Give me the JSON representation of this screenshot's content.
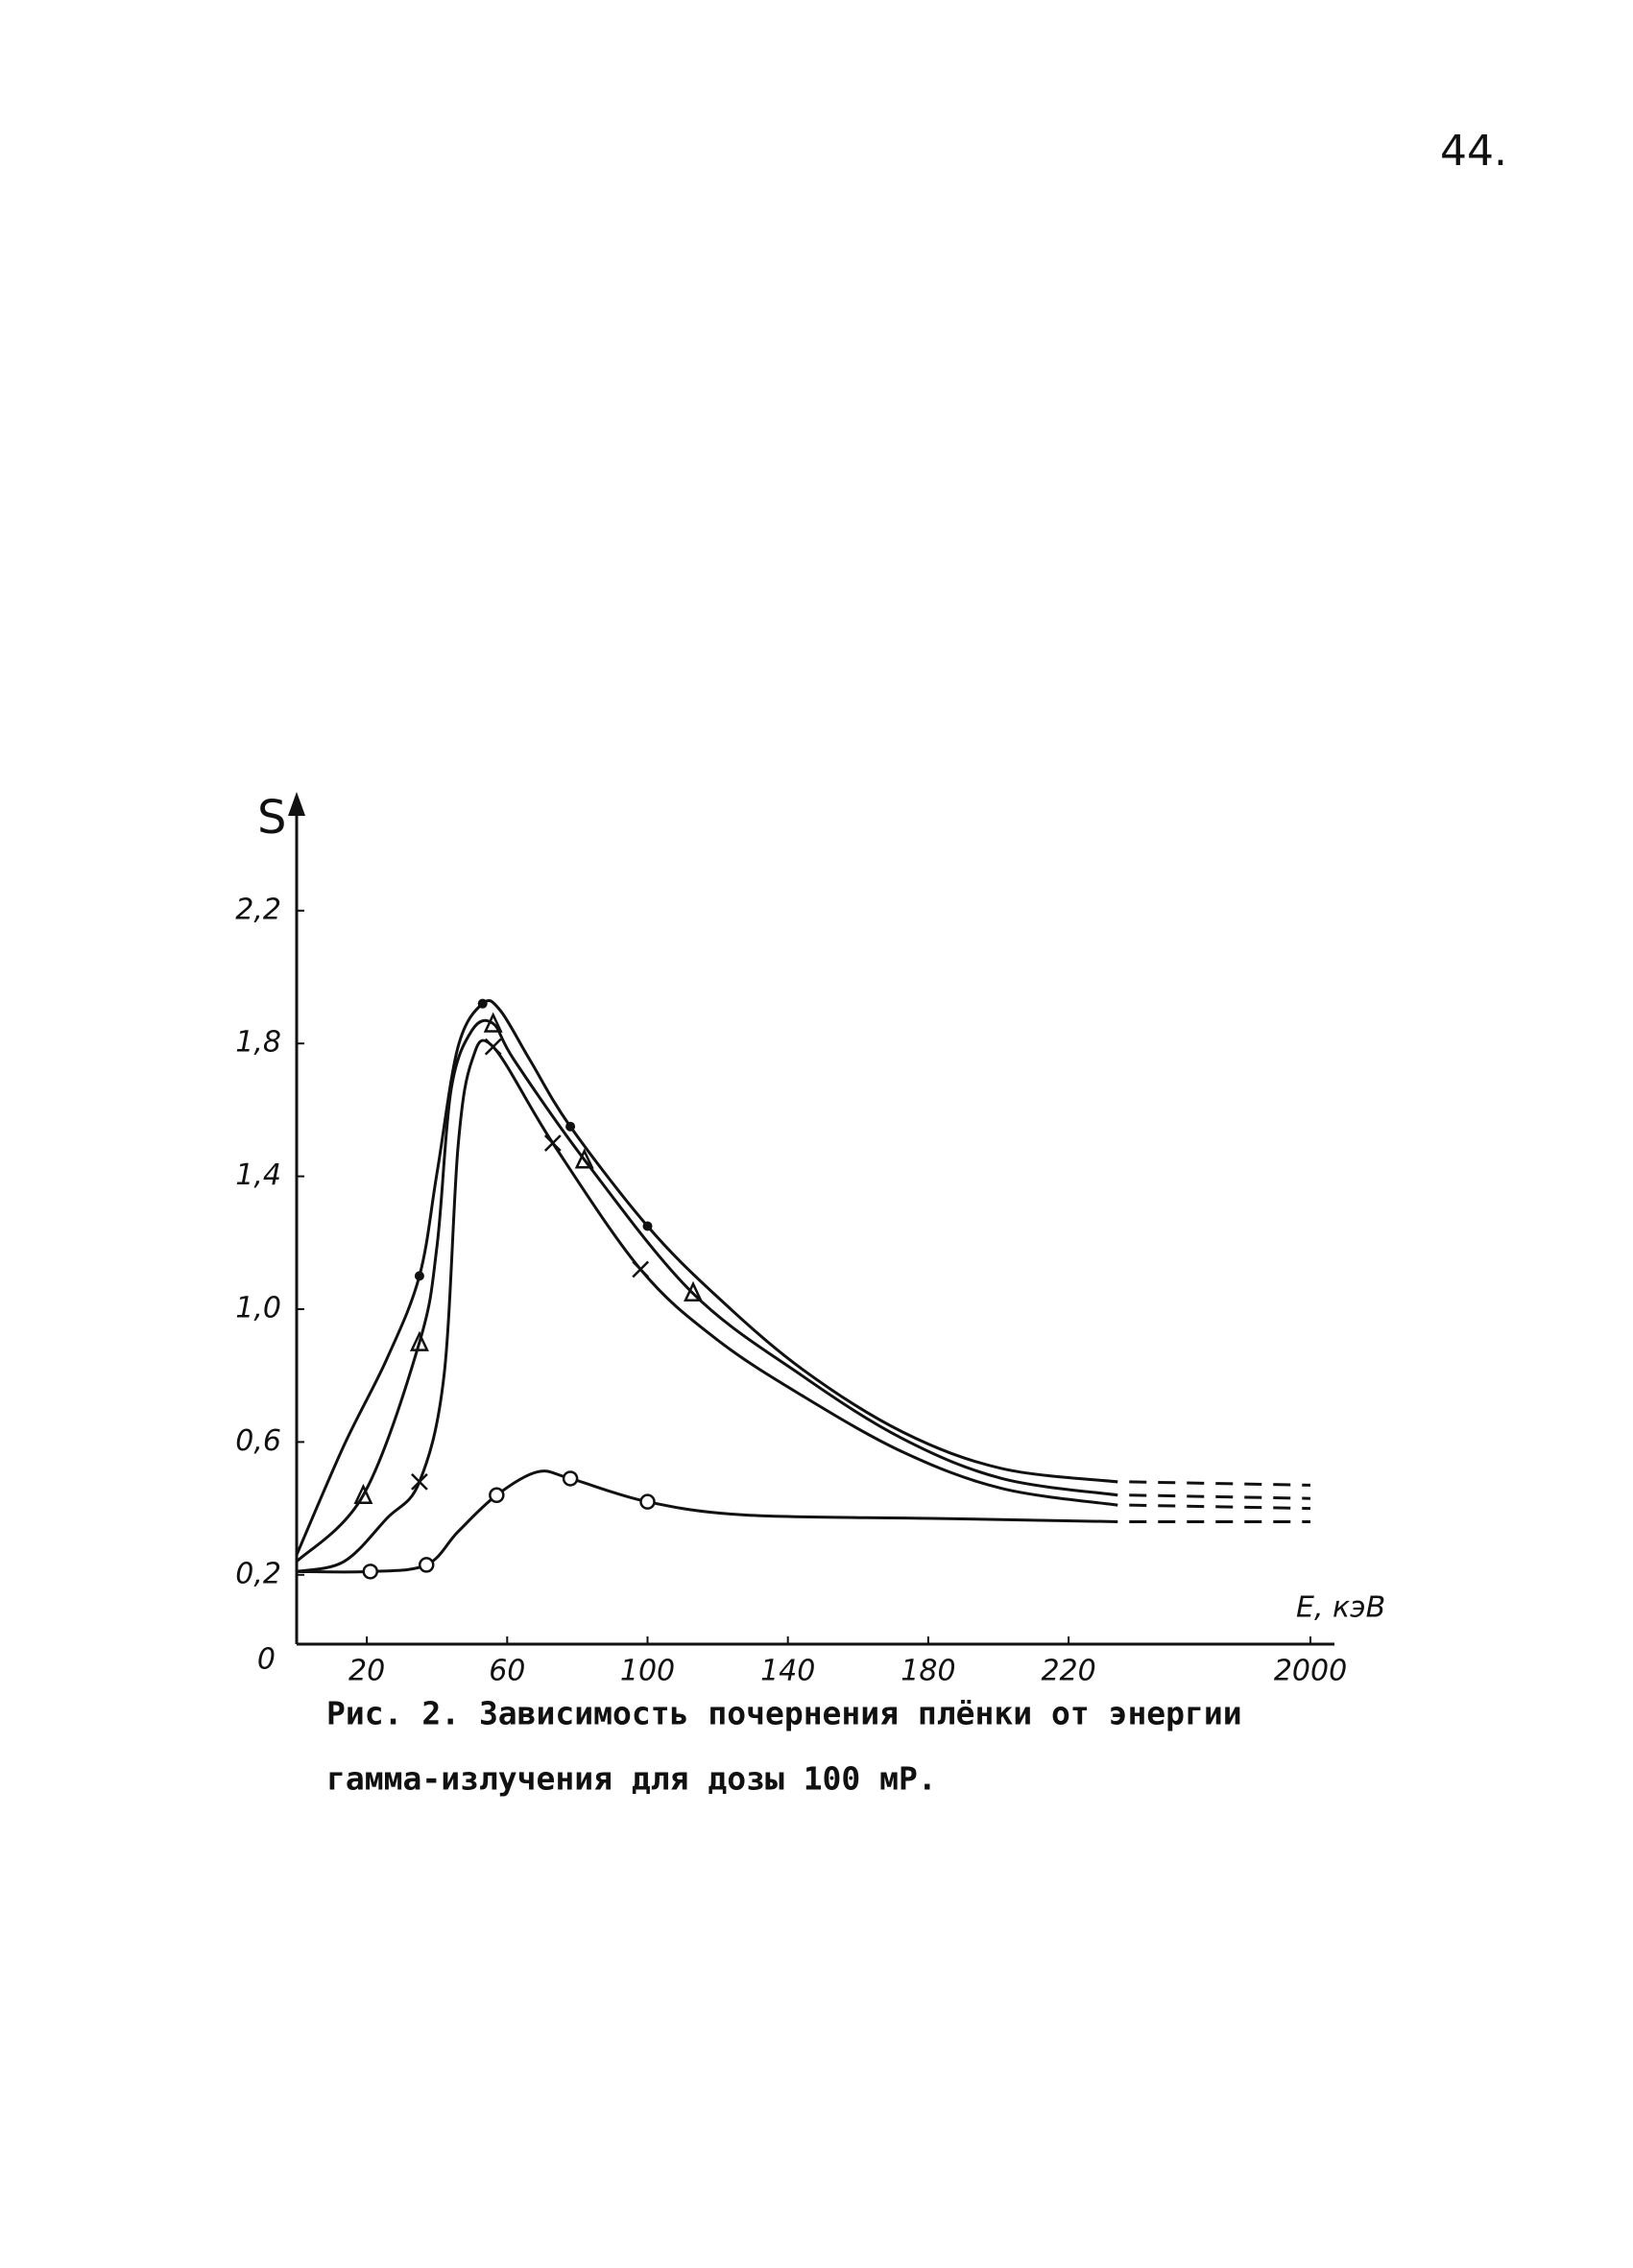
{
  "page_number": "44.",
  "chart_data": {
    "type": "line",
    "y_label": "S",
    "x_label": "E, кэВ",
    "xlim": [
      0,
      2000
    ],
    "ylim": [
      0,
      2.5
    ],
    "xticks": [
      20,
      60,
      100,
      140,
      180,
      220,
      2000
    ],
    "yticks": [
      0,
      {
        "value": 0.2,
        "label": "0,2"
      },
      {
        "value": 0.6,
        "label": "0,6"
      },
      {
        "value": 1.0,
        "label": "1,0"
      },
      {
        "value": 1.4,
        "label": "1,4"
      },
      {
        "value": 1.8,
        "label": "1,8"
      },
      {
        "value": 2.2,
        "label": "2,2"
      }
    ],
    "color": "#111111",
    "series": [
      {
        "marker": "dot",
        "x": [
          35,
          53,
          78,
          100
        ],
        "values": [
          1.1,
          1.92,
          1.55,
          1.25
        ],
        "curve_x": [
          0,
          13.5,
          25.7,
          35,
          40,
          46,
          53,
          58,
          66.5,
          78,
          100,
          119.6,
          144,
          172.7,
          201,
          234,
          2000
        ],
        "curve_values": [
          0.26,
          0.59,
          0.85,
          1.1,
          1.41,
          1.79,
          1.92,
          1.9,
          1.75,
          1.55,
          1.25,
          1.04,
          0.82,
          0.63,
          0.52,
          0.48,
          0.47
        ]
      },
      {
        "marker": "triangle",
        "x": [
          19,
          35,
          56,
          82,
          113
        ],
        "values": [
          0.44,
          0.9,
          1.86,
          1.45,
          1.05
        ],
        "curve_x": [
          0,
          19,
          35,
          40,
          44,
          50,
          56,
          62,
          82,
          112.7,
          144,
          172.7,
          201,
          234,
          2000
        ],
        "curve_values": [
          0.24,
          0.44,
          0.9,
          1.19,
          1.66,
          1.84,
          1.86,
          1.75,
          1.45,
          1.05,
          0.8,
          0.61,
          0.49,
          0.44,
          0.43
        ]
      },
      {
        "marker": "cross",
        "x": [
          35,
          56,
          73,
          98
        ],
        "values": [
          0.48,
          1.79,
          1.5,
          1.12
        ],
        "curve_x": [
          0,
          13.5,
          25.7,
          35,
          42,
          46,
          50,
          56,
          73,
          98,
          119.6,
          144,
          172.7,
          201,
          234,
          2000
        ],
        "curve_values": [
          0.21,
          0.24,
          0.37,
          0.48,
          0.8,
          1.49,
          1.75,
          1.79,
          1.5,
          1.12,
          0.91,
          0.74,
          0.57,
          0.46,
          0.41,
          0.4
        ]
      },
      {
        "marker": "circle",
        "x": [
          21,
          37,
          57,
          78,
          100
        ],
        "values": [
          0.21,
          0.23,
          0.44,
          0.49,
          0.42
        ],
        "curve_x": [
          0,
          21,
          37,
          46,
          57,
          68.6,
          78,
          100,
          128,
          181,
          234,
          2000
        ],
        "curve_values": [
          0.21,
          0.21,
          0.23,
          0.33,
          0.44,
          0.51,
          0.49,
          0.42,
          0.38,
          0.37,
          0.36,
          0.36
        ]
      }
    ]
  },
  "caption": {
    "line1": "Рис. 2. Зависимость почернения плёнки от энергии",
    "line2": "гамма-излучения для дозы 100 мР."
  }
}
